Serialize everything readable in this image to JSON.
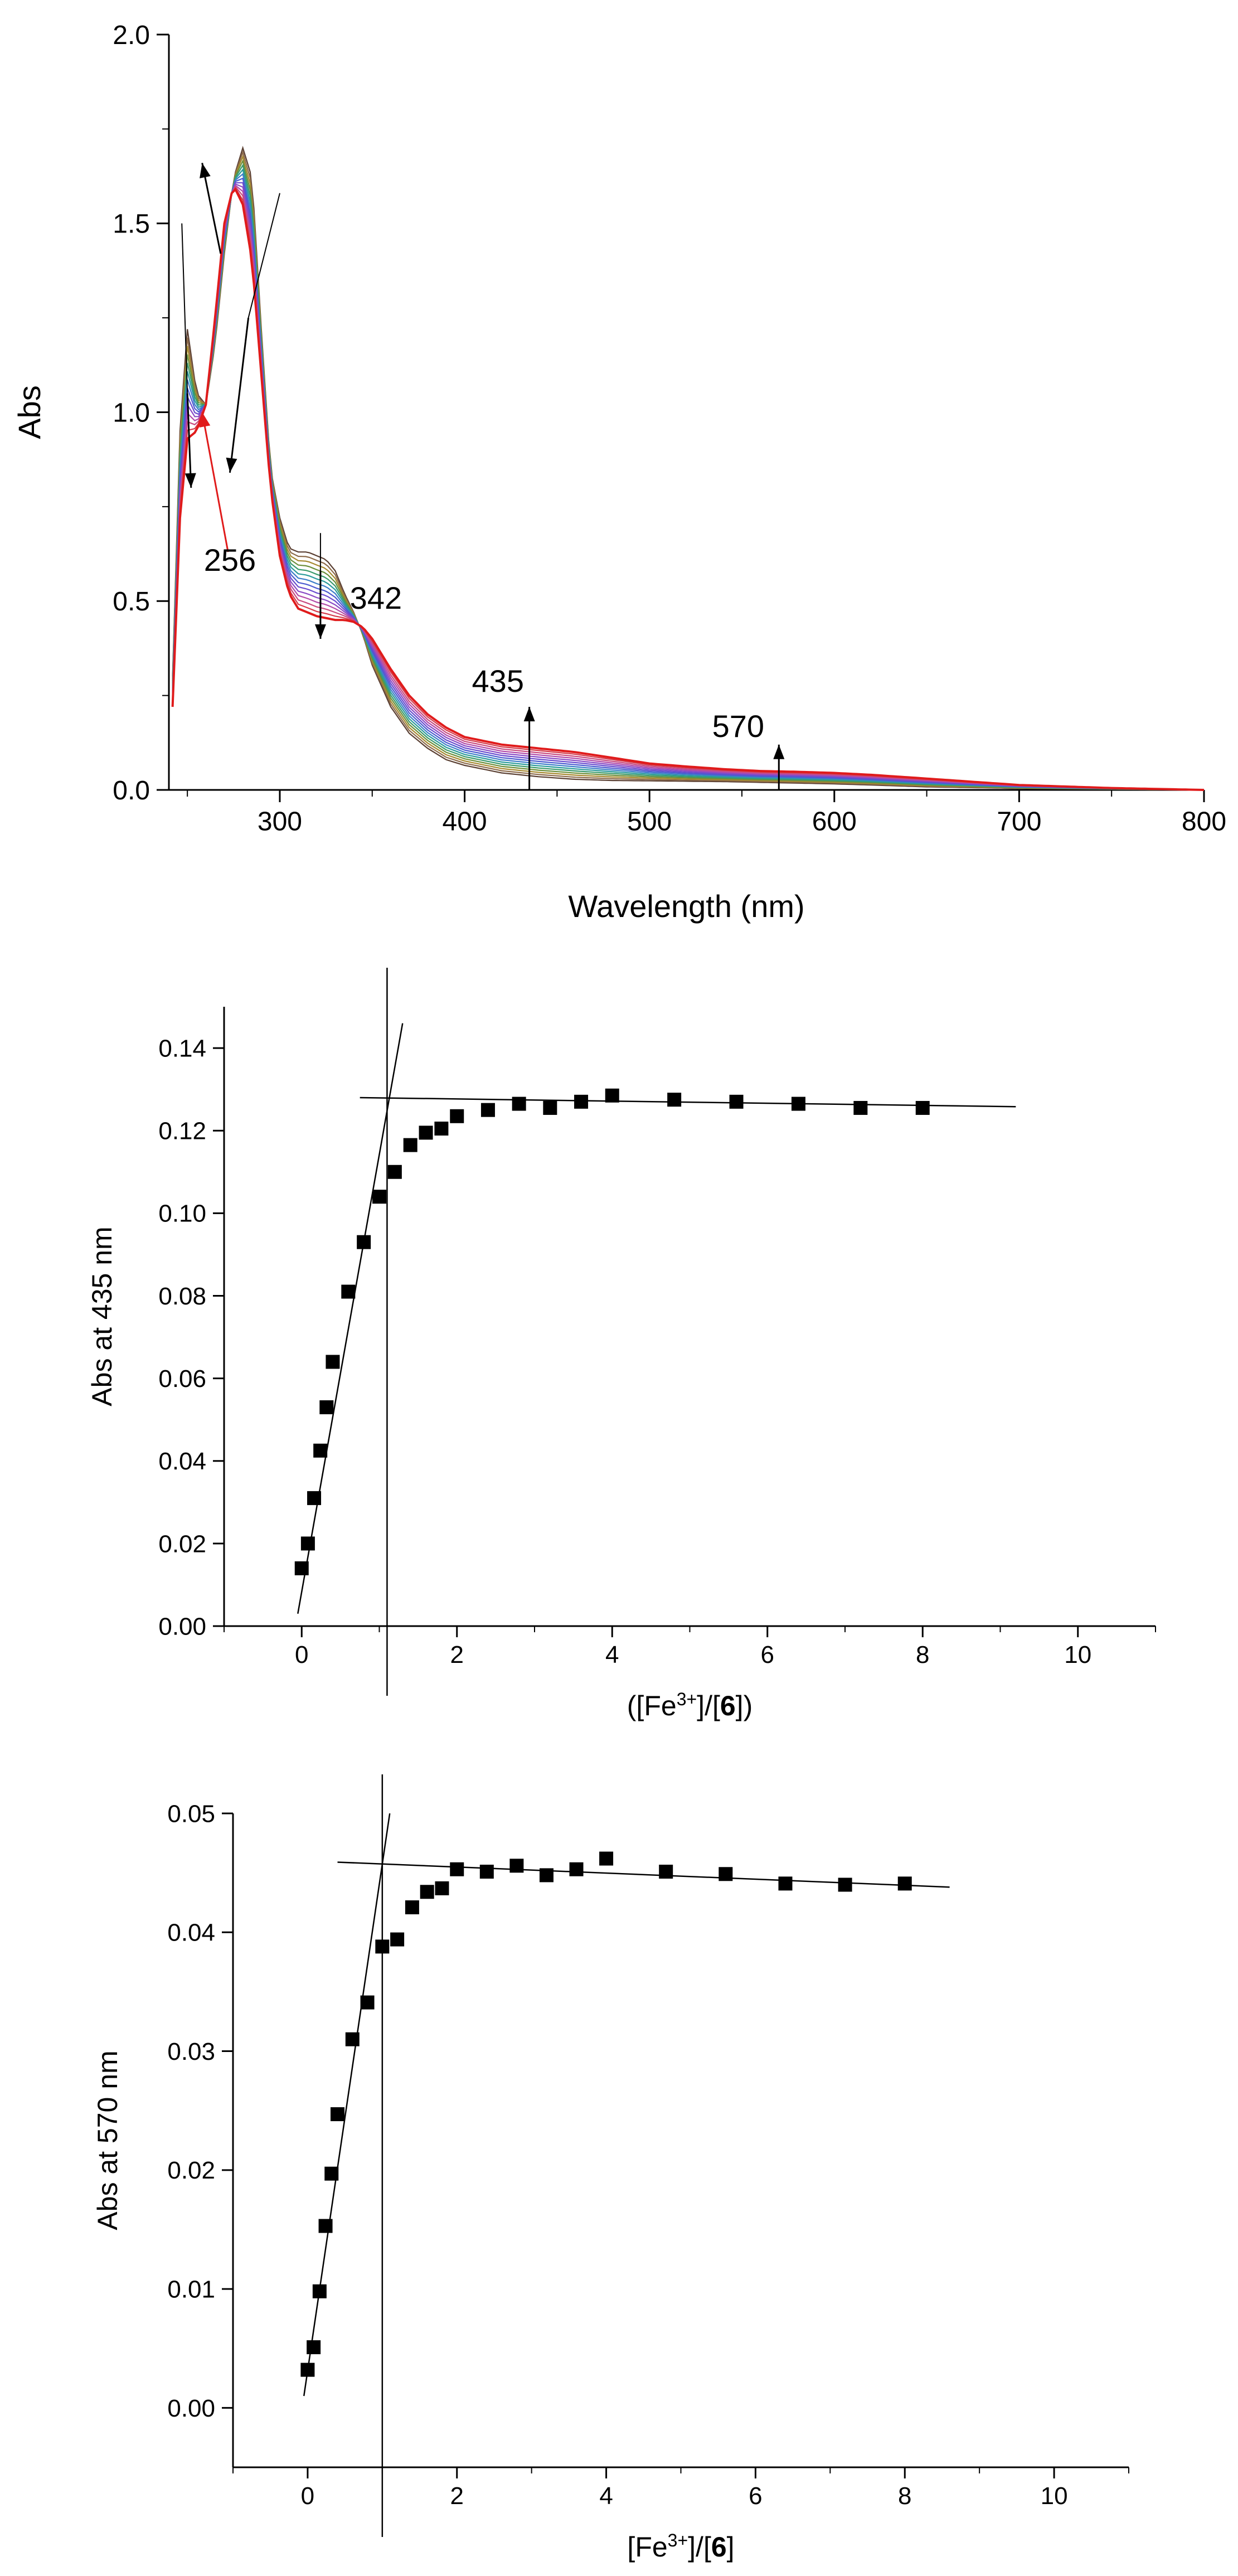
{
  "chart_data": [
    {
      "type": "line",
      "title": "",
      "xlabel": "Wavelength (nm)",
      "ylabel": "Abs",
      "xlim": [
        240,
        800
      ],
      "ylim": [
        0.0,
        2.0
      ],
      "xticks": [
        300,
        400,
        500,
        600,
        700,
        800
      ],
      "xtick_labels": [
        "300",
        "400",
        "500",
        "600",
        "700",
        "800"
      ],
      "yticks": [
        0.0,
        0.5,
        1.0,
        1.5,
        2.0
      ],
      "ytick_labels": [
        "0.0",
        "0.5",
        "1.0",
        "1.5",
        "2.0"
      ],
      "series_count": 14,
      "series_colors": [
        "#5a3f32",
        "#8c6a4a",
        "#a6892f",
        "#6b8f3a",
        "#3a9a6b",
        "#2a9b9b",
        "#3d7ec9",
        "#4b5bd0",
        "#6a4ccf",
        "#8a4bc5",
        "#b24aa8",
        "#c84a7e",
        "#d43a4a",
        "#e01b1b"
      ],
      "first_spectrum": {
        "x": [
          242,
          246,
          250,
          255,
          260,
          265,
          270,
          275,
          280,
          285,
          290,
          295,
          300,
          305,
          310,
          315,
          320,
          325,
          330,
          335,
          340,
          345,
          350,
          360,
          370,
          380,
          390,
          400,
          420,
          440,
          460,
          480,
          500,
          520,
          540,
          560,
          580,
          600,
          620,
          650,
          700,
          750,
          800
        ],
        "y": [
          0.3,
          0.95,
          1.22,
          1.05,
          1.02,
          1.18,
          1.42,
          1.62,
          1.7,
          1.62,
          1.22,
          0.85,
          0.72,
          0.64,
          0.63,
          0.63,
          0.62,
          0.61,
          0.58,
          0.52,
          0.47,
          0.41,
          0.33,
          0.22,
          0.15,
          0.11,
          0.08,
          0.065,
          0.045,
          0.035,
          0.028,
          0.025,
          0.024,
          0.023,
          0.022,
          0.02,
          0.018,
          0.016,
          0.013,
          0.008,
          0.004,
          0.002,
          0.0
        ]
      },
      "last_spectrum": {
        "x": [
          242,
          246,
          250,
          255,
          260,
          265,
          270,
          275,
          280,
          285,
          290,
          295,
          300,
          305,
          310,
          315,
          320,
          325,
          330,
          335,
          340,
          345,
          350,
          360,
          370,
          380,
          390,
          400,
          420,
          440,
          460,
          480,
          500,
          520,
          540,
          560,
          580,
          600,
          620,
          650,
          700,
          750,
          800
        ],
        "y": [
          0.22,
          0.72,
          0.93,
          0.95,
          1.02,
          1.25,
          1.5,
          1.6,
          1.55,
          1.4,
          1.1,
          0.8,
          0.62,
          0.52,
          0.48,
          0.47,
          0.46,
          0.455,
          0.45,
          0.45,
          0.445,
          0.43,
          0.4,
          0.32,
          0.25,
          0.2,
          0.165,
          0.14,
          0.12,
          0.11,
          0.1,
          0.085,
          0.07,
          0.062,
          0.055,
          0.05,
          0.048,
          0.045,
          0.04,
          0.03,
          0.013,
          0.005,
          0.0
        ]
      },
      "annotations": [
        {
          "text": "256",
          "x": 273,
          "y": 0.58
        },
        {
          "text": "342",
          "x": 352,
          "y": 0.48
        },
        {
          "text": "435",
          "x": 418,
          "y": 0.26
        },
        {
          "text": "570",
          "x": 548,
          "y": 0.14
        }
      ]
    },
    {
      "type": "scatter",
      "xlabel": "([Fe3+]/[6])",
      "ylabel": "Abs at 435 nm",
      "xlabel_parts": {
        "open": "([Fe",
        "sup": "3+",
        "mid": "]/[",
        "bold": "6",
        "close": "])"
      },
      "xlim": [
        -1,
        11
      ],
      "ylim": [
        0.0,
        0.15
      ],
      "xticks": [
        0,
        2,
        4,
        6,
        8,
        10
      ],
      "xtick_labels": [
        "0",
        "2",
        "4",
        "6",
        "8",
        "10"
      ],
      "yticks": [
        0.0,
        0.02,
        0.04,
        0.06,
        0.08,
        0.1,
        0.12,
        0.14
      ],
      "ytick_labels": [
        "0.00",
        "0.02",
        "0.04",
        "0.06",
        "0.08",
        "0.10",
        "0.12",
        "0.14"
      ],
      "x": [
        0.0,
        0.08,
        0.16,
        0.24,
        0.32,
        0.4,
        0.6,
        0.8,
        1.0,
        1.2,
        1.4,
        1.6,
        1.8,
        2.0,
        2.4,
        2.8,
        3.2,
        3.6,
        4.0,
        4.8,
        5.6,
        6.4,
        7.2,
        8.0
      ],
      "y": [
        0.014,
        0.02,
        0.031,
        0.0425,
        0.053,
        0.064,
        0.081,
        0.093,
        0.104,
        0.11,
        0.1165,
        0.1195,
        0.1205,
        0.1235,
        0.125,
        0.1265,
        0.1255,
        0.127,
        0.1285,
        0.1275,
        0.127,
        0.1265,
        0.1255,
        0.1255
      ],
      "fit_lines": [
        {
          "x1": -0.05,
          "y1": 0.003,
          "x2": 1.3,
          "y2": 0.146
        },
        {
          "x1": 0.75,
          "y1": 0.128,
          "x2": 9.2,
          "y2": 0.1258
        }
      ],
      "vline_x": 1.1
    },
    {
      "type": "scatter",
      "xlabel": "[Fe3+]/[6]",
      "ylabel": "Abs at 570 nm",
      "xlabel_parts": {
        "open": "[Fe",
        "sup": "3+",
        "mid": "]/[",
        "bold": "6",
        "close": "]"
      },
      "xlim": [
        -1,
        11
      ],
      "ylim": [
        -0.005,
        0.05
      ],
      "xticks": [
        0,
        2,
        4,
        6,
        8,
        10
      ],
      "xtick_labels": [
        "0",
        "2",
        "4",
        "6",
        "8",
        "10"
      ],
      "yticks": [
        0.0,
        0.01,
        0.02,
        0.03,
        0.04,
        0.05
      ],
      "ytick_labels": [
        "0.00",
        "0.01",
        "0.02",
        "0.03",
        "0.04",
        "0.05"
      ],
      "x": [
        0.0,
        0.08,
        0.16,
        0.24,
        0.32,
        0.4,
        0.6,
        0.8,
        1.0,
        1.2,
        1.4,
        1.6,
        1.8,
        2.0,
        2.4,
        2.8,
        3.2,
        3.6,
        4.0,
        4.8,
        5.6,
        6.4,
        7.2,
        8.0
      ],
      "y": [
        0.0032,
        0.0051,
        0.0098,
        0.0153,
        0.0197,
        0.0247,
        0.031,
        0.0341,
        0.0388,
        0.0394,
        0.0421,
        0.0434,
        0.0437,
        0.0453,
        0.0451,
        0.0456,
        0.0448,
        0.0453,
        0.0462,
        0.0451,
        0.0449,
        0.0441,
        0.044,
        0.0441
      ],
      "fit_lines": [
        {
          "x1": -0.05,
          "y1": 0.001,
          "x2": 1.1,
          "y2": 0.05
        },
        {
          "x1": 0.4,
          "y1": 0.0459,
          "x2": 8.6,
          "y2": 0.0438
        }
      ],
      "vline_x": 1.0
    }
  ]
}
